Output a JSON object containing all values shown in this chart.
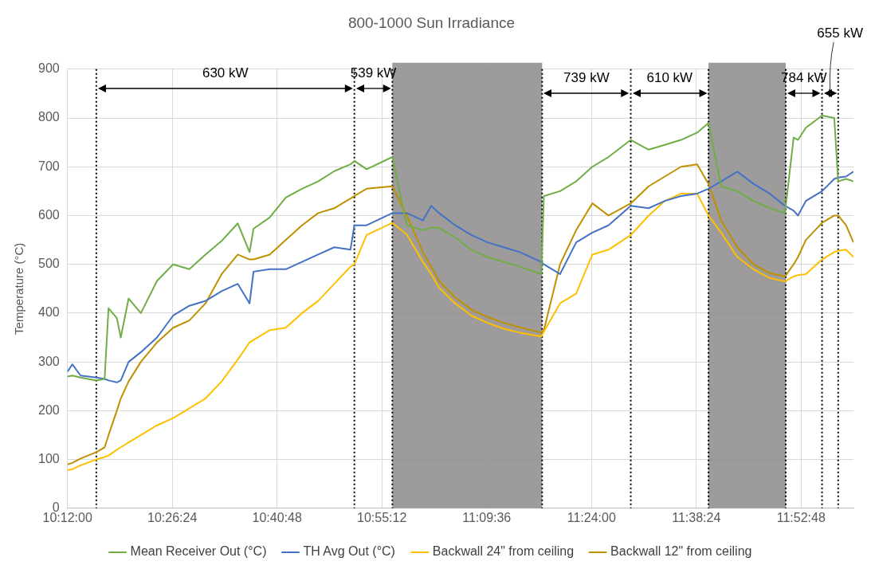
{
  "chart_data": {
    "type": "line",
    "title": "800-1000 Sun Irradiance",
    "ylabel": "Temperature (°C)",
    "x": [
      10.2,
      10.211,
      10.23,
      10.266,
      10.285,
      10.294,
      10.313,
      10.322,
      10.34,
      10.368,
      10.405,
      10.442,
      10.479,
      10.516,
      10.553,
      10.59,
      10.617,
      10.626,
      10.663,
      10.7,
      10.737,
      10.774,
      10.811,
      10.848,
      10.857,
      10.885,
      10.944,
      10.977,
      11.014,
      11.033,
      11.051,
      11.088,
      11.125,
      11.162,
      11.199,
      11.236,
      11.285,
      11.291,
      11.328,
      11.365,
      11.402,
      11.439,
      11.49,
      11.531,
      11.568,
      11.605,
      11.642,
      11.668,
      11.697,
      11.734,
      11.771,
      11.808,
      11.843,
      11.863,
      11.873,
      11.891,
      11.928,
      11.956,
      11.965,
      11.983,
      12.0
    ],
    "series": [
      {
        "name": "Mean Receiver Out (°C)",
        "color": "#70ad47",
        "values": [
          270,
          272,
          268,
          262,
          265,
          410,
          390,
          350,
          430,
          400,
          466,
          500,
          490,
          520,
          548,
          584,
          525,
          573,
          596,
          637,
          655,
          670,
          691,
          705,
          712,
          695,
          720,
          580,
          570,
          575,
          575,
          555,
          530,
          515,
          505,
          495,
          480,
          640,
          650,
          670,
          700,
          720,
          755,
          735,
          745,
          755,
          770,
          790,
          660,
          650,
          630,
          615,
          605,
          760,
          755,
          780,
          805,
          800,
          670,
          675,
          670
        ]
      },
      {
        "name": "TH Avg Out (°C)",
        "color": "#4472c4",
        "values": [
          280,
          295,
          272,
          268,
          265,
          262,
          258,
          262,
          300,
          320,
          350,
          395,
          415,
          425,
          445,
          460,
          420,
          485,
          490,
          490,
          505,
          520,
          535,
          530,
          580,
          580,
          605,
          605,
          590,
          620,
          605,
          580,
          560,
          545,
          535,
          525,
          505,
          500,
          480,
          545,
          565,
          580,
          620,
          615,
          630,
          640,
          645,
          655,
          670,
          690,
          665,
          645,
          620,
          610,
          600,
          630,
          650,
          675,
          678,
          680,
          690
        ]
      },
      {
        "name": "Backwall 24\" from ceiling",
        "color": "#ffc000",
        "values": [
          78,
          80,
          88,
          100,
          105,
          108,
          120,
          125,
          135,
          150,
          170,
          185,
          205,
          225,
          260,
          305,
          340,
          345,
          365,
          370,
          400,
          425,
          460,
          495,
          500,
          560,
          585,
          561,
          505,
          480,
          452,
          420,
          395,
          380,
          368,
          360,
          352,
          362,
          420,
          440,
          520,
          530,
          560,
          600,
          630,
          645,
          645,
          600,
          565,
          515,
          490,
          472,
          465,
          475,
          478,
          480,
          510,
          525,
          528,
          530,
          515
        ]
      },
      {
        "name": "Backwall 12\" from ceiling",
        "color": "#bf9000",
        "values": [
          90,
          93,
          102,
          115,
          125,
          150,
          200,
          225,
          260,
          300,
          340,
          370,
          385,
          420,
          480,
          520,
          510,
          510,
          520,
          550,
          580,
          605,
          615,
          635,
          640,
          655,
          660,
          600,
          525,
          495,
          466,
          432,
          407,
          392,
          380,
          371,
          360,
          365,
          500,
          570,
          625,
          600,
          625,
          660,
          680,
          700,
          705,
          665,
          590,
          535,
          500,
          482,
          475,
          500,
          515,
          550,
          585,
          600,
          600,
          580,
          545
        ]
      }
    ],
    "xlim": [
      10.2,
      12.0
    ],
    "xticks": [
      {
        "value": 10.2,
        "label": "10:12:00"
      },
      {
        "value": 10.44,
        "label": "10:26:24"
      },
      {
        "value": 10.68,
        "label": "10:40:48"
      },
      {
        "value": 10.92,
        "label": "10:55:12"
      },
      {
        "value": 11.16,
        "label": "11:09:36"
      },
      {
        "value": 11.4,
        "label": "11:24:00"
      },
      {
        "value": 11.64,
        "label": "11:38:24"
      },
      {
        "value": 11.88,
        "label": "11:52:48"
      }
    ],
    "ylim": [
      0,
      900
    ],
    "yticks": [
      0,
      100,
      200,
      300,
      400,
      500,
      600,
      700,
      800,
      900
    ],
    "grid": true,
    "legend": "bottom",
    "marker": "none",
    "line_style": "solid",
    "bands": [
      {
        "axis": "x",
        "from": 10.944,
        "to": 11.287,
        "color": "#8c8989"
      },
      {
        "axis": "x",
        "from": 11.668,
        "to": 11.845,
        "color": "#8c8989"
      }
    ],
    "ref_lines": [
      {
        "axis": "x",
        "value": 10.266,
        "line_style": "dotted",
        "color": "#000000"
      },
      {
        "axis": "x",
        "value": 10.857,
        "line_style": "dotted",
        "color": "#000000"
      },
      {
        "axis": "x",
        "value": 10.944,
        "line_style": "dotted",
        "color": "#000000"
      },
      {
        "axis": "x",
        "value": 11.287,
        "line_style": "dotted",
        "color": "#000000"
      },
      {
        "axis": "x",
        "value": 11.49,
        "line_style": "dotted",
        "color": "#000000"
      },
      {
        "axis": "x",
        "value": 11.668,
        "line_style": "dotted",
        "color": "#000000"
      },
      {
        "axis": "x",
        "value": 11.845,
        "line_style": "dotted",
        "color": "#000000"
      },
      {
        "axis": "x",
        "value": 11.928,
        "line_style": "dotted",
        "color": "#000000"
      },
      {
        "axis": "x",
        "value": 11.965,
        "line_style": "dotted",
        "color": "#000000"
      }
    ],
    "annotations": [
      "630 kW",
      "539 kW",
      "739 kW",
      "610 kW",
      "784 kW",
      "655 kW"
    ]
  }
}
